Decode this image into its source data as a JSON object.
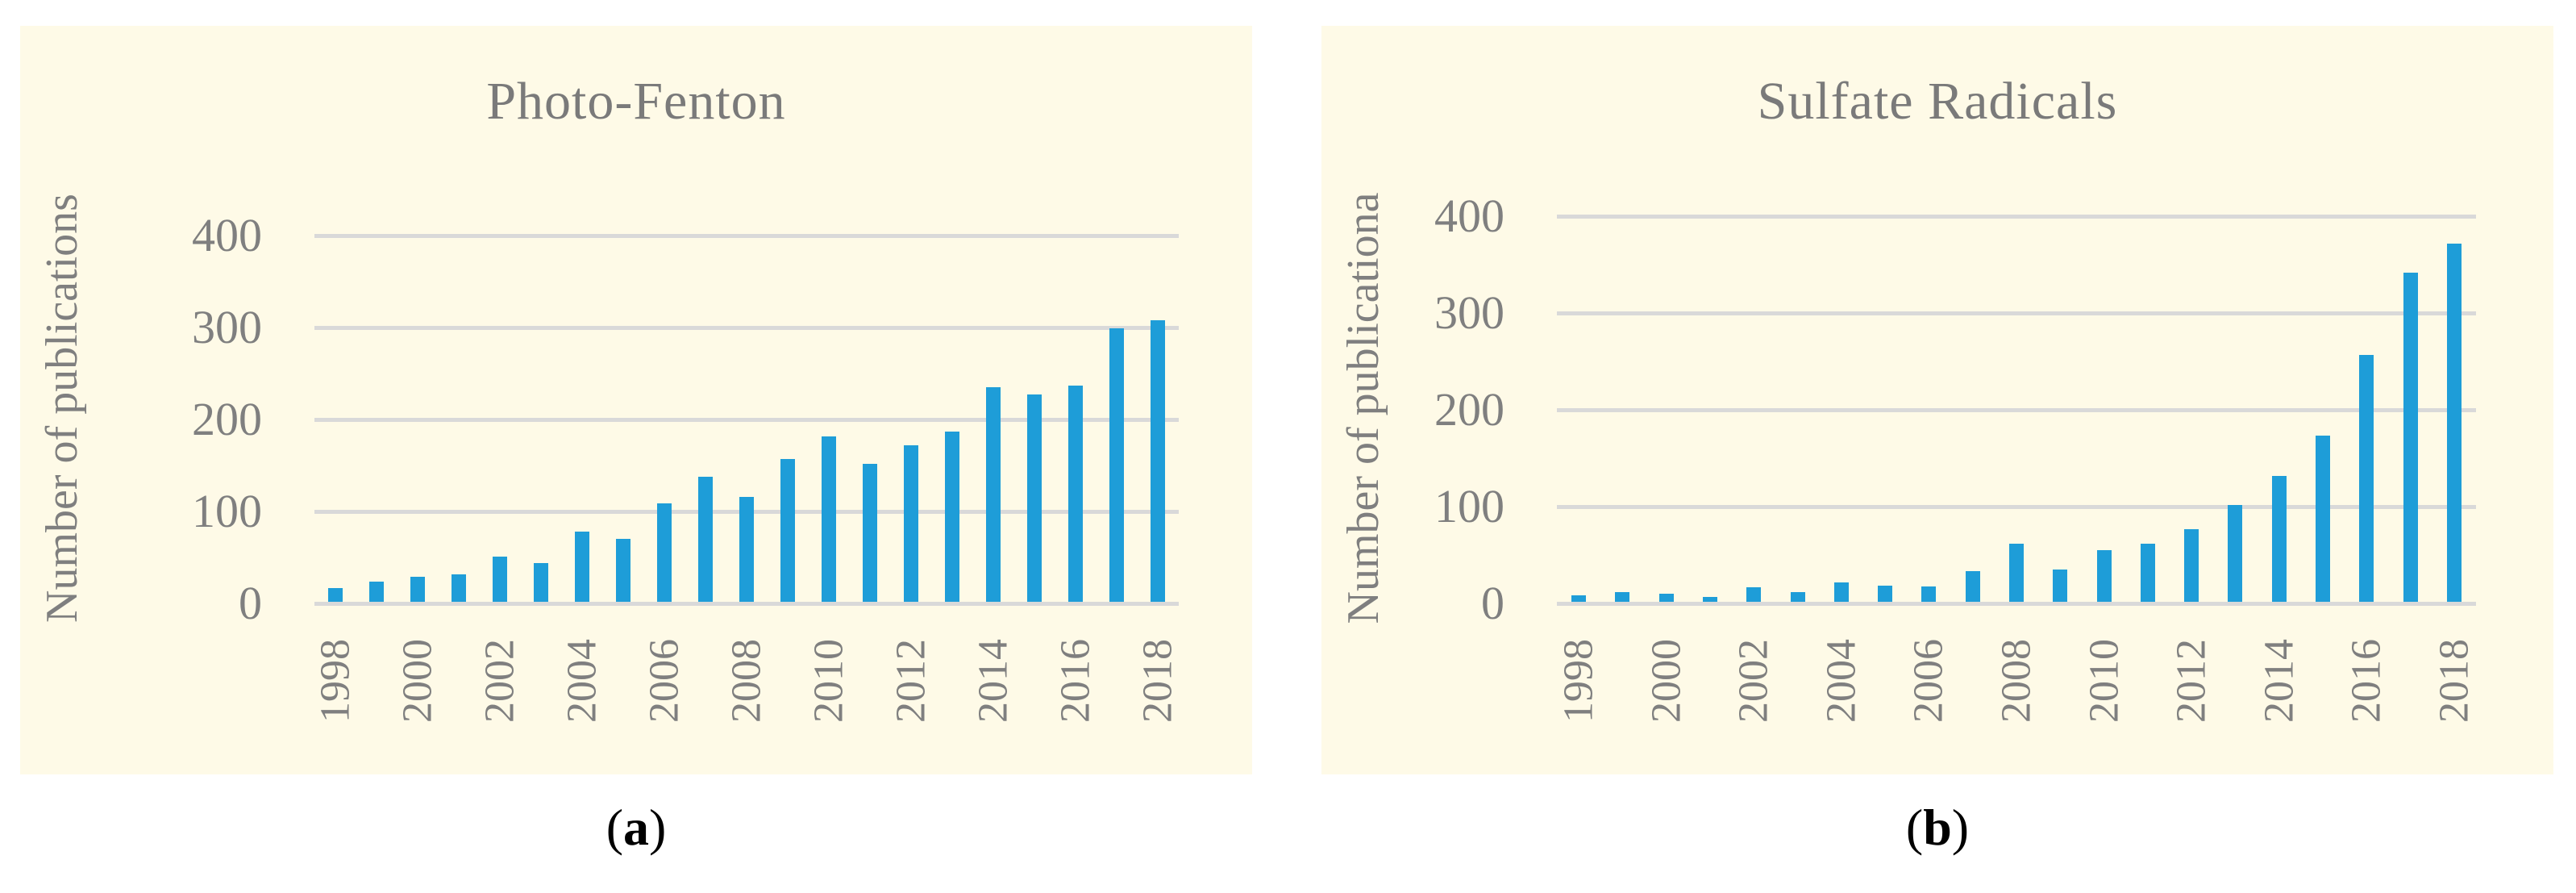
{
  "figure": {
    "colors": {
      "page_background": "#ffffff",
      "panel_background": "#fefae7",
      "bar": "#1e9dd8",
      "gridline": "#d9d9d9",
      "axis_text": "#7f7f7f",
      "title_text": "#7a7a7a",
      "caption_text": "#000000"
    }
  },
  "panels": [
    {
      "caption_open": "(",
      "caption_letter": "a",
      "caption_close": ")"
    },
    {
      "caption_open": "(",
      "caption_letter": "b",
      "caption_close": ")"
    }
  ],
  "chart_data": [
    {
      "type": "bar",
      "title": "Photo-Fenton",
      "ylabel": "Number of publications",
      "xlabel": "",
      "categories": [
        "1998",
        "1999",
        "2000",
        "2001",
        "2002",
        "2003",
        "2004",
        "2005",
        "2006",
        "2007",
        "2008",
        "2009",
        "2010",
        "2011",
        "2012",
        "2013",
        "2014",
        "2015",
        "2016",
        "2017",
        "2018"
      ],
      "values": [
        15,
        22,
        27,
        30,
        49,
        42,
        76,
        68,
        107,
        136,
        114,
        155,
        180,
        150,
        170,
        185,
        233,
        225,
        235,
        297,
        306
      ],
      "ylim": [
        0,
        400
      ],
      "yticks": [
        0,
        100,
        200,
        300,
        400
      ],
      "xticks_shown": [
        "1998",
        "2000",
        "2002",
        "2004",
        "2006",
        "2008",
        "2010",
        "2012",
        "2014",
        "2016",
        "2018"
      ],
      "grid": "horizontal",
      "legend": "none",
      "bar_color": "#1e9dd8"
    },
    {
      "type": "bar",
      "title": "Sulfate Radicals",
      "ylabel": "Number of publicationa",
      "xlabel": "",
      "categories": [
        "1998",
        "1999",
        "2000",
        "2001",
        "2002",
        "2003",
        "2004",
        "2005",
        "2006",
        "2007",
        "2008",
        "2009",
        "2010",
        "2011",
        "2012",
        "2013",
        "2014",
        "2015",
        "2016",
        "2017",
        "2018"
      ],
      "values": [
        7,
        10,
        8,
        5,
        15,
        10,
        20,
        17,
        16,
        32,
        60,
        33,
        53,
        60,
        75,
        100,
        130,
        172,
        255,
        340,
        370
      ],
      "ylim": [
        0,
        400
      ],
      "yticks": [
        0,
        100,
        200,
        300,
        400
      ],
      "xticks_shown": [
        "1998",
        "2000",
        "2002",
        "2004",
        "2006",
        "2008",
        "2010",
        "2012",
        "2014",
        "2016",
        "2018"
      ],
      "grid": "horizontal",
      "legend": "none",
      "bar_color": "#1e9dd8"
    }
  ]
}
